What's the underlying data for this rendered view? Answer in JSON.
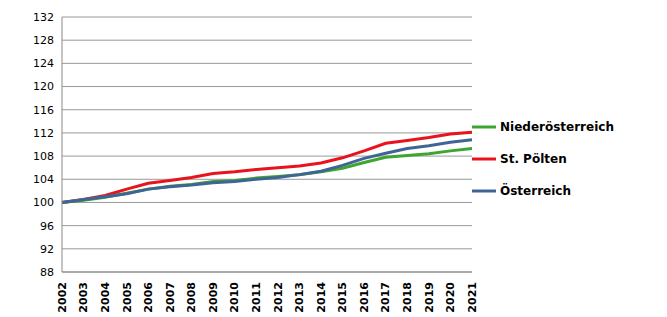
{
  "chart_data": {
    "type": "line",
    "categories": [
      "2002",
      "2003",
      "2004",
      "2005",
      "2006",
      "2007",
      "2008",
      "2009",
      "2010",
      "2011",
      "2012",
      "2013",
      "2014",
      "2015",
      "2016",
      "2017",
      "2018",
      "2019",
      "2020",
      "2021"
    ],
    "series": [
      {
        "name": "St. Pölten",
        "color": "#e8131c",
        "values": [
          100,
          100.5,
          101.2,
          102.3,
          103.3,
          103.8,
          104.3,
          105.0,
          105.3,
          105.7,
          106.0,
          106.3,
          106.8,
          107.7,
          108.9,
          110.2,
          110.7,
          111.2,
          111.8,
          112.1
        ]
      },
      {
        "name": "Niederösterreich",
        "color": "#3ea530",
        "values": [
          100,
          100.4,
          100.9,
          101.6,
          102.3,
          102.8,
          103.1,
          103.6,
          103.8,
          104.2,
          104.5,
          104.8,
          105.3,
          105.9,
          106.9,
          107.8,
          108.1,
          108.4,
          108.9,
          109.3
        ]
      },
      {
        "name": "Österreich",
        "color": "#3f6496",
        "values": [
          100,
          100.5,
          101.0,
          101.5,
          102.3,
          102.7,
          103.0,
          103.4,
          103.6,
          104.0,
          104.3,
          104.8,
          105.4,
          106.4,
          107.6,
          108.5,
          109.3,
          109.8,
          110.4,
          110.8
        ]
      }
    ],
    "ylim": [
      88,
      132
    ],
    "yticks": [
      88,
      92,
      96,
      100,
      104,
      108,
      112,
      116,
      120,
      124,
      128,
      132
    ],
    "grid": true,
    "legend": "right"
  }
}
